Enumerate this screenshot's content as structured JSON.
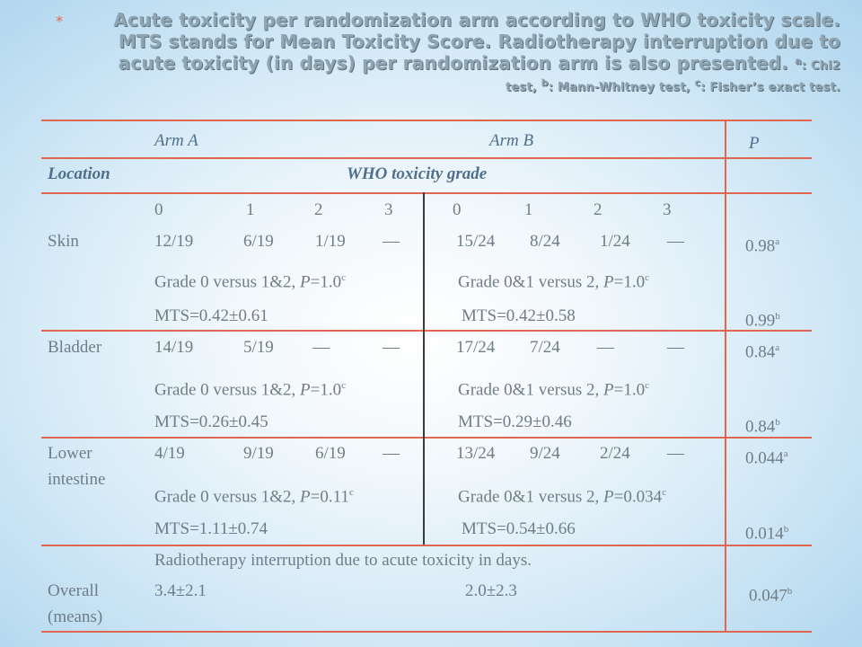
{
  "title": {
    "bullet": "*",
    "line1": "Acute toxicity per randomization arm according to WHO toxicity scale.",
    "line2": "MTS stands for Mean Toxicity Score. Radiotherapy interruption due to",
    "line3": "acute toxicity (in days) per randomization arm is also presented.",
    "line3_note_sup": "a",
    "line3_note": ": Chi2",
    "line4_pre": "test, ",
    "line4_b_sup": "b",
    "line4_mid": ": Mann-Whitney test, ",
    "line4_c_sup": "c",
    "line4_end": ": Fisher’s exact test."
  },
  "header": {
    "arm_a": "Arm A",
    "arm_b": "Arm B",
    "p": "P",
    "location": "Location",
    "who_grade": "WHO toxicity grade"
  },
  "grades_a": [
    "0",
    "1",
    "2",
    "3"
  ],
  "grades_b": [
    "0",
    "1",
    "2",
    "3"
  ],
  "skin": {
    "label": "Skin",
    "a": [
      "12/19",
      "6/19",
      "1/19",
      "—"
    ],
    "b": [
      "15/24",
      "8/24",
      "1/24",
      "—"
    ],
    "p1": "0.98",
    "p1_sup": "a",
    "cmp_a_pre": "Grade 0 versus 1&2, ",
    "cmp_a_p": "P",
    "cmp_a_val": "=1.0",
    "cmp_a_sup": "c",
    "cmp_b_pre": "Grade 0&1 versus 2, ",
    "cmp_b_p": "P",
    "cmp_b_val": "=1.0",
    "cmp_b_sup": "c",
    "mts_a": "MTS=0.42±0.61",
    "mts_b": "MTS=0.42±0.58",
    "p2": "0.99",
    "p2_sup": "b"
  },
  "bladder": {
    "label": "Bladder",
    "a": [
      "14/19",
      "5/19",
      "—",
      "—"
    ],
    "b": [
      "17/24",
      "7/24",
      "—",
      "—"
    ],
    "p1": "0.84",
    "p1_sup": "a",
    "cmp_a_pre": "Grade 0 versus 1&2, ",
    "cmp_a_p": "P",
    "cmp_a_val": "=1.0",
    "cmp_a_sup": "c",
    "cmp_b_pre": "Grade 0&1 versus 2, ",
    "cmp_b_p": "P",
    "cmp_b_val": "=1.0",
    "cmp_b_sup": "c",
    "mts_a": "MTS=0.26±0.45",
    "mts_b": "MTS=0.29±0.46",
    "p2": "0.84",
    "p2_sup": "b"
  },
  "lower": {
    "label1": "Lower",
    "label2": "intestine",
    "a": [
      "4/19",
      "9/19",
      "6/19",
      "—"
    ],
    "b": [
      "13/24",
      "9/24",
      "2/24",
      "—"
    ],
    "p1": "0.044",
    "p1_sup": "a",
    "cmp_a_pre": "Grade 0 versus 1&2, ",
    "cmp_a_p": "P",
    "cmp_a_val": "=0.11",
    "cmp_a_sup": "c",
    "cmp_b_pre": "Grade 0&1 versus 2, ",
    "cmp_b_p": "P",
    "cmp_b_val": "=0.034",
    "cmp_b_sup": "c",
    "mts_a": "MTS=1.11±0.74",
    "mts_b": "MTS=0.54±0.66",
    "p2": "0.014",
    "p2_sup": "b"
  },
  "overall": {
    "note": "Radiotherapy interruption due to acute toxicity in days.",
    "label1": "Overall",
    "label2": "(means)",
    "a": "3.4±2.1",
    "b": "2.0±2.3",
    "p": "0.047",
    "p_sup": "b"
  },
  "colors": {
    "rule": "#e06650",
    "divider": "#3a3a3a",
    "header_text": "#4f6f8c",
    "body_text": "#6f7d87",
    "title_text": "#8fa5b2",
    "bullet": "#e8674b"
  }
}
